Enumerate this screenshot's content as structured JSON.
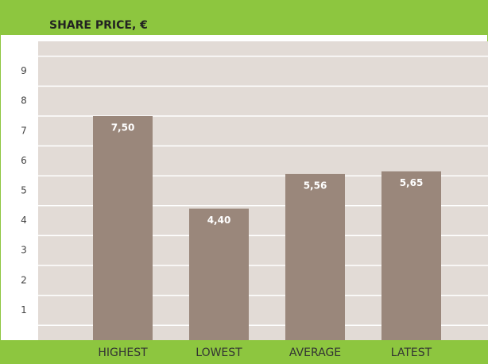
{
  "chart_data": {
    "type": "bar",
    "title": "SHARE PRICE, €",
    "categories": [
      "HIGHEST",
      "LOWEST",
      "AVERAGE",
      "LATEST"
    ],
    "values": [
      7.5,
      4.4,
      5.56,
      5.65
    ],
    "value_labels": [
      "7,50",
      "4,40",
      "5,56",
      "5,65"
    ],
    "color": "#9a877b",
    "ylim": [
      0,
      10
    ],
    "yticks": [
      1,
      2,
      3,
      4,
      5,
      6,
      7,
      8,
      9
    ],
    "grid": true
  }
}
